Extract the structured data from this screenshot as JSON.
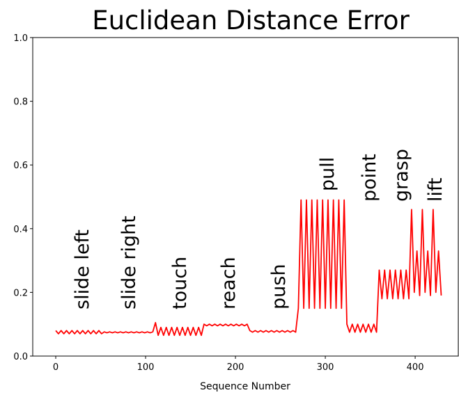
{
  "chart_data": {
    "type": "line",
    "title": "Euclidean Distance Error",
    "xlabel": "Sequence Number",
    "annotations": [
      "slide left",
      "slide right",
      "touch",
      "reach",
      "push",
      "pull",
      "point",
      "grasp",
      "lift"
    ],
    "x": [
      0,
      3,
      6,
      9,
      12,
      15,
      18,
      21,
      24,
      27,
      30,
      33,
      36,
      39,
      42,
      45,
      48,
      51,
      54,
      57,
      60,
      63,
      66,
      69,
      72,
      75,
      78,
      81,
      84,
      87,
      90,
      93,
      96,
      99,
      102,
      105,
      108,
      111,
      114,
      117,
      120,
      123,
      126,
      129,
      132,
      135,
      138,
      141,
      144,
      147,
      150,
      153,
      156,
      159,
      162,
      165,
      168,
      171,
      174,
      177,
      180,
      183,
      186,
      189,
      192,
      195,
      198,
      201,
      204,
      207,
      210,
      213,
      216,
      219,
      222,
      225,
      228,
      231,
      234,
      237,
      240,
      243,
      246,
      249,
      252,
      255,
      258,
      261,
      264,
      267,
      270,
      273,
      276,
      279,
      282,
      285,
      288,
      291,
      294,
      297,
      300,
      303,
      306,
      309,
      312,
      315,
      318,
      321,
      324,
      327,
      330,
      333,
      336,
      339,
      342,
      345,
      348,
      351,
      354,
      357,
      360,
      363,
      366,
      369,
      372,
      375,
      378,
      381,
      384,
      387,
      390,
      393,
      396,
      399,
      402,
      405,
      408,
      411,
      414,
      417,
      420,
      423,
      426,
      429
    ],
    "series": [
      {
        "name": "error",
        "color": "#ff0000",
        "values": [
          0.08,
          0.07,
          0.08,
          0.07,
          0.08,
          0.07,
          0.08,
          0.07,
          0.08,
          0.07,
          0.08,
          0.07,
          0.08,
          0.07,
          0.08,
          0.07,
          0.08,
          0.07,
          0.076,
          0.073,
          0.076,
          0.073,
          0.076,
          0.073,
          0.076,
          0.073,
          0.076,
          0.073,
          0.076,
          0.073,
          0.076,
          0.073,
          0.076,
          0.073,
          0.076,
          0.073,
          0.076,
          0.105,
          0.065,
          0.09,
          0.065,
          0.09,
          0.065,
          0.09,
          0.065,
          0.09,
          0.065,
          0.09,
          0.065,
          0.09,
          0.065,
          0.09,
          0.065,
          0.09,
          0.065,
          0.1,
          0.095,
          0.1,
          0.095,
          0.1,
          0.095,
          0.1,
          0.095,
          0.1,
          0.095,
          0.1,
          0.095,
          0.1,
          0.095,
          0.1,
          0.095,
          0.1,
          0.08,
          0.075,
          0.08,
          0.075,
          0.08,
          0.075,
          0.08,
          0.075,
          0.08,
          0.075,
          0.08,
          0.075,
          0.08,
          0.075,
          0.08,
          0.075,
          0.08,
          0.075,
          0.15,
          0.49,
          0.15,
          0.49,
          0.15,
          0.49,
          0.15,
          0.49,
          0.15,
          0.49,
          0.15,
          0.49,
          0.15,
          0.49,
          0.15,
          0.49,
          0.15,
          0.49,
          0.1,
          0.075,
          0.1,
          0.075,
          0.1,
          0.075,
          0.1,
          0.075,
          0.1,
          0.075,
          0.1,
          0.075,
          0.27,
          0.18,
          0.27,
          0.18,
          0.27,
          0.18,
          0.27,
          0.18,
          0.27,
          0.18,
          0.27,
          0.18,
          0.46,
          0.2,
          0.33,
          0.19,
          0.46,
          0.2,
          0.33,
          0.19,
          0.46,
          0.2,
          0.33,
          0.19
        ]
      }
    ],
    "xlim": [
      -25.6,
      448
    ],
    "ylim": [
      0,
      1
    ],
    "xticks": [
      0,
      100,
      200,
      300,
      400
    ],
    "yticks": [
      {
        "value": 0,
        "label": "0.0"
      },
      0.2,
      0.4,
      0.6,
      0.8,
      {
        "value": 1,
        "label": "1.0"
      }
    ]
  }
}
